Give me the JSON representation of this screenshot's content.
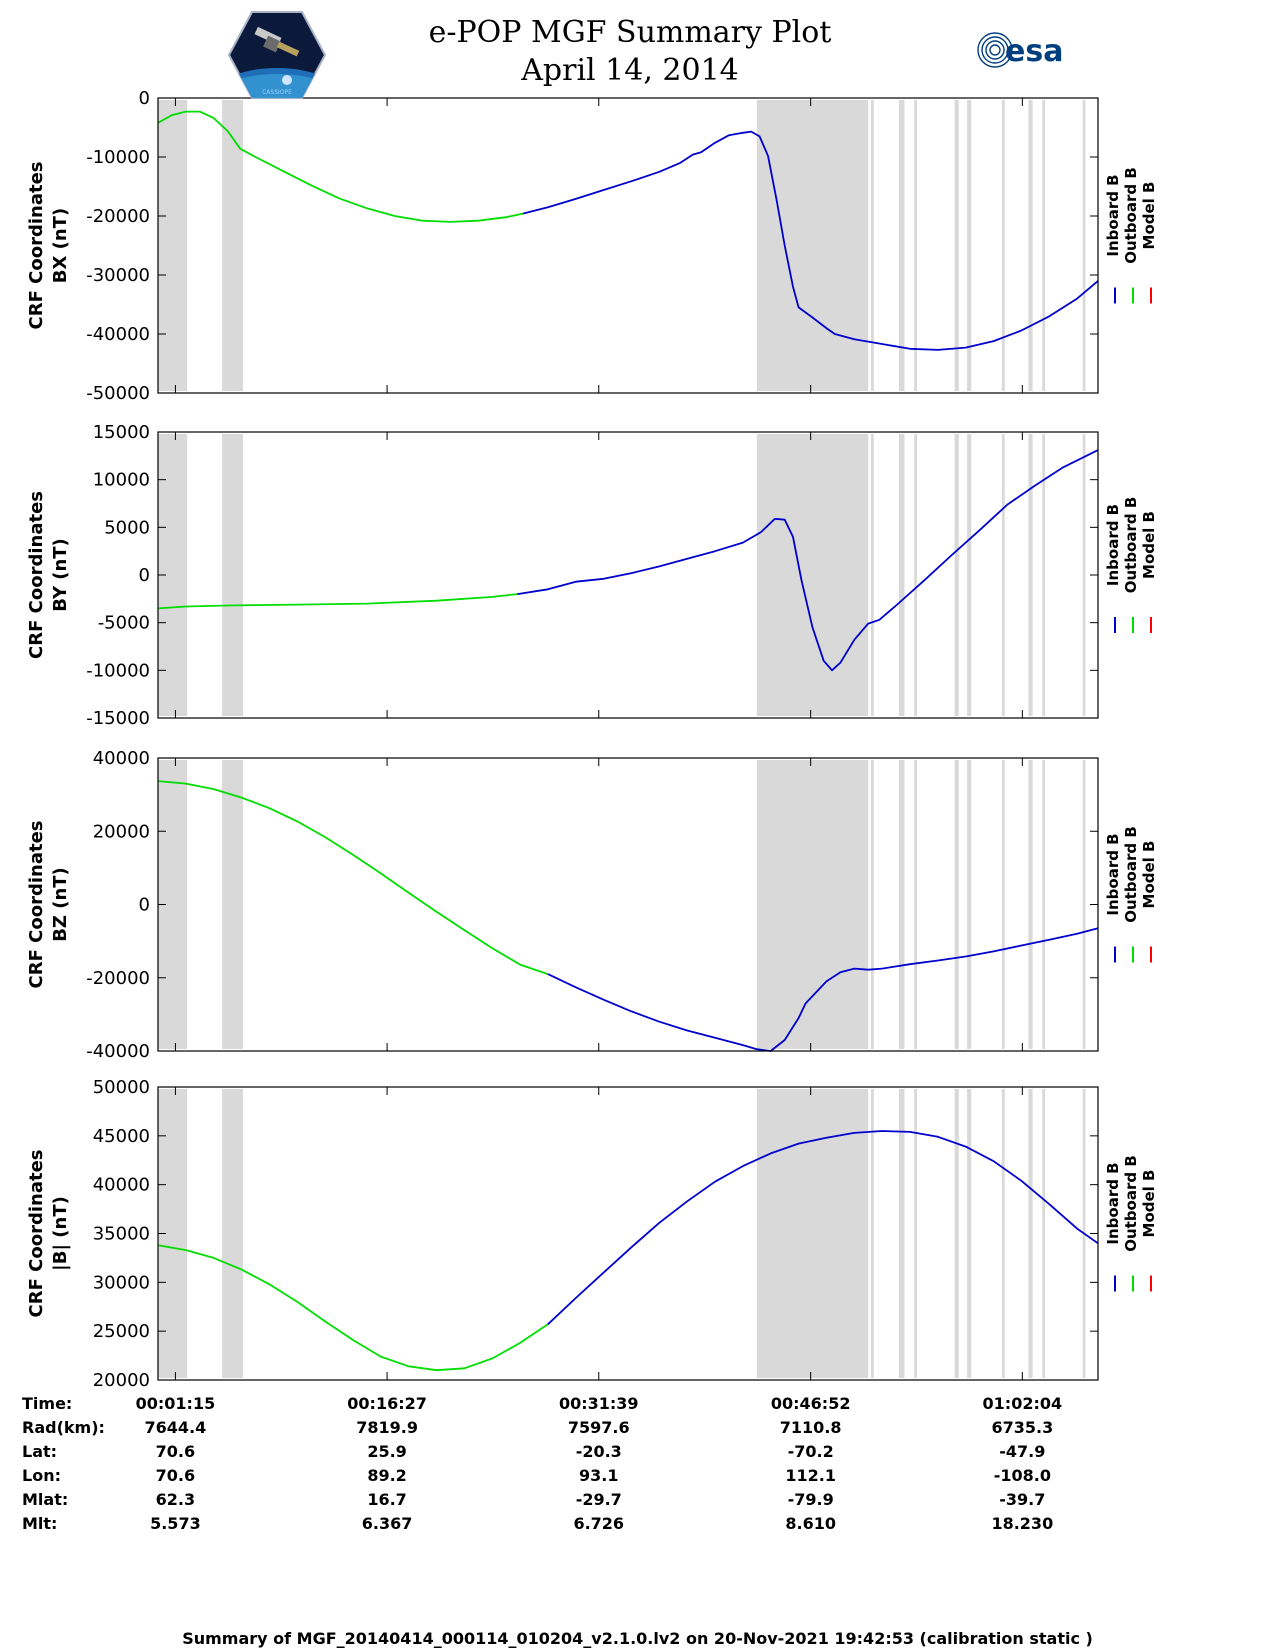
{
  "header": {
    "title_line1": "e-POP MGF Summary Plot",
    "title_line2": "April 14, 2014",
    "logo_left_text": "CASSIOPE",
    "logo_right_text": "esa"
  },
  "colors": {
    "inboard": "#0000cc",
    "outboard": "#00dd00",
    "model": "#ff0000",
    "gap": "#d9d9d9"
  },
  "chart_data": [
    {
      "type": "line",
      "panel": "BX",
      "ylabel_line1": "CRF Coordinates",
      "ylabel_line2": "BX (nT)",
      "ylim": [
        -50000,
        0
      ],
      "yticks": [
        0,
        -10000,
        -20000,
        -30000,
        -40000,
        -50000
      ],
      "legend": [
        "Inboard B",
        "Outboard B",
        "Model B"
      ],
      "series": [
        {
          "name": "Outboard B",
          "color_key": "outboard",
          "points": [
            [
              0,
              -4200
            ],
            [
              1,
              -2900
            ],
            [
              2,
              -2300
            ],
            [
              3,
              -2300
            ],
            [
              4,
              -3400
            ],
            [
              5,
              -5600
            ],
            [
              5.9,
              -8600
            ],
            [
              7,
              -10000
            ],
            [
              9,
              -12400
            ],
            [
              11,
              -14800
            ],
            [
              13,
              -17000
            ],
            [
              15,
              -18700
            ],
            [
              17,
              -20000
            ],
            [
              19,
              -20800
            ],
            [
              21,
              -21000
            ],
            [
              23,
              -20800
            ],
            [
              25,
              -20200
            ],
            [
              26.2,
              -19600
            ]
          ]
        },
        {
          "name": "Inboard B",
          "color_key": "inboard",
          "points": [
            [
              26.2,
              -19600
            ],
            [
              28,
              -18500
            ],
            [
              30,
              -17100
            ],
            [
              32,
              -15600
            ],
            [
              34,
              -14100
            ],
            [
              36,
              -12500
            ],
            [
              37.5,
              -11000
            ],
            [
              38.4,
              -9600
            ],
            [
              39,
              -9200
            ],
            [
              40,
              -7600
            ],
            [
              41,
              -6300
            ],
            [
              42,
              -5900
            ],
            [
              42.6,
              -5700
            ],
            [
              43.2,
              -6500
            ],
            [
              43.8,
              -9800
            ],
            [
              44.4,
              -17000
            ],
            [
              45,
              -25000
            ],
            [
              45.6,
              -32000
            ],
            [
              46,
              -35500
            ],
            [
              47,
              -37200
            ],
            [
              48,
              -39000
            ],
            [
              48.6,
              -40000
            ],
            [
              50,
              -40900
            ],
            [
              52,
              -41700
            ],
            [
              54,
              -42500
            ],
            [
              56,
              -42700
            ],
            [
              58,
              -42300
            ],
            [
              60,
              -41200
            ],
            [
              62,
              -39400
            ],
            [
              64,
              -37000
            ],
            [
              66,
              -34000
            ],
            [
              67.5,
              -31000
            ]
          ]
        }
      ]
    },
    {
      "type": "line",
      "panel": "BY",
      "ylabel_line1": "CRF Coordinates",
      "ylabel_line2": "BY (nT)",
      "ylim": [
        -15000,
        15000
      ],
      "yticks": [
        15000,
        10000,
        5000,
        0,
        -5000,
        -10000,
        -15000
      ],
      "legend": [
        "Inboard B",
        "Outboard B",
        "Model B"
      ],
      "series": [
        {
          "name": "Outboard B",
          "color_key": "outboard",
          "points": [
            [
              0,
              -3500
            ],
            [
              2,
              -3300
            ],
            [
              5,
              -3200
            ],
            [
              10,
              -3100
            ],
            [
              15,
              -3000
            ],
            [
              20,
              -2700
            ],
            [
              24,
              -2300
            ],
            [
              25.8,
              -2000
            ]
          ]
        },
        {
          "name": "Inboard B",
          "color_key": "inboard",
          "points": [
            [
              25.8,
              -2000
            ],
            [
              28,
              -1500
            ],
            [
              30,
              -700
            ],
            [
              32,
              -400
            ],
            [
              34,
              200
            ],
            [
              36,
              900
            ],
            [
              38,
              1700
            ],
            [
              40,
              2500
            ],
            [
              42,
              3400
            ],
            [
              43.3,
              4500
            ],
            [
              44.3,
              5900
            ],
            [
              45,
              5800
            ],
            [
              45.6,
              4000
            ],
            [
              46.2,
              -500
            ],
            [
              47,
              -5500
            ],
            [
              47.8,
              -9000
            ],
            [
              48.4,
              -10000
            ],
            [
              49,
              -9200
            ],
            [
              50,
              -6800
            ],
            [
              51,
              -5100
            ],
            [
              51.8,
              -4700
            ],
            [
              53,
              -3200
            ],
            [
              55,
              -600
            ],
            [
              57,
              2100
            ],
            [
              59,
              4700
            ],
            [
              61,
              7400
            ],
            [
              63,
              9400
            ],
            [
              65,
              11300
            ],
            [
              67.5,
              13100
            ]
          ]
        }
      ]
    },
    {
      "type": "line",
      "panel": "BZ",
      "ylabel_line1": "CRF Coordinates",
      "ylabel_line2": "BZ (nT)",
      "ylim": [
        -40000,
        40000
      ],
      "yticks": [
        40000,
        20000,
        0,
        -20000,
        -40000
      ],
      "legend": [
        "Inboard B",
        "Outboard B",
        "Model B"
      ],
      "series": [
        {
          "name": "Outboard B",
          "color_key": "outboard",
          "points": [
            [
              0,
              33700
            ],
            [
              2,
              33000
            ],
            [
              4,
              31500
            ],
            [
              6,
              29200
            ],
            [
              8,
              26300
            ],
            [
              10,
              22700
            ],
            [
              12,
              18400
            ],
            [
              14,
              13600
            ],
            [
              16,
              8500
            ],
            [
              18,
              3200
            ],
            [
              20,
              -2000
            ],
            [
              22,
              -7000
            ],
            [
              24,
              -11900
            ],
            [
              26,
              -16400
            ],
            [
              28,
              -19000
            ]
          ]
        },
        {
          "name": "Inboard B",
          "color_key": "inboard",
          "points": [
            [
              28,
              -19000
            ],
            [
              30,
              -22600
            ],
            [
              32,
              -26000
            ],
            [
              34,
              -29200
            ],
            [
              36,
              -32000
            ],
            [
              38,
              -34400
            ],
            [
              40,
              -36400
            ],
            [
              42,
              -38400
            ],
            [
              43,
              -39500
            ],
            [
              44,
              -40000
            ],
            [
              45,
              -37000
            ],
            [
              46,
              -31000
            ],
            [
              46.5,
              -27000
            ],
            [
              47,
              -25000
            ],
            [
              48,
              -21000
            ],
            [
              49,
              -18500
            ],
            [
              50,
              -17500
            ],
            [
              51,
              -17800
            ],
            [
              52,
              -17500
            ],
            [
              54,
              -16300
            ],
            [
              56,
              -15300
            ],
            [
              58,
              -14200
            ],
            [
              60,
              -12800
            ],
            [
              62,
              -11200
            ],
            [
              64,
              -9600
            ],
            [
              66,
              -8000
            ],
            [
              67.5,
              -6500
            ]
          ]
        }
      ]
    },
    {
      "type": "line",
      "panel": "B",
      "ylabel_line1": "CRF Coordinates",
      "ylabel_line2": "|B| (nT)",
      "ylim": [
        20000,
        50000
      ],
      "yticks": [
        50000,
        45000,
        40000,
        35000,
        30000,
        25000,
        20000
      ],
      "legend": [
        "Inboard B",
        "Outboard B",
        "Model B"
      ],
      "series": [
        {
          "name": "Outboard B",
          "color_key": "outboard",
          "points": [
            [
              0,
              33800
            ],
            [
              2,
              33300
            ],
            [
              4,
              32500
            ],
            [
              6,
              31300
            ],
            [
              8,
              29800
            ],
            [
              10,
              28000
            ],
            [
              12,
              26000
            ],
            [
              14,
              24100
            ],
            [
              16,
              22400
            ],
            [
              18,
              21400
            ],
            [
              20,
              21000
            ],
            [
              22,
              21200
            ],
            [
              24,
              22200
            ],
            [
              26,
              23800
            ],
            [
              28,
              25700
            ]
          ]
        },
        {
          "name": "Inboard B",
          "color_key": "inboard",
          "points": [
            [
              28,
              25700
            ],
            [
              30,
              28400
            ],
            [
              32,
              31000
            ],
            [
              34,
              33600
            ],
            [
              36,
              36100
            ],
            [
              38,
              38300
            ],
            [
              40,
              40300
            ],
            [
              42,
              41900
            ],
            [
              44,
              43200
            ],
            [
              46,
              44200
            ],
            [
              48,
              44800
            ],
            [
              50,
              45300
            ],
            [
              52,
              45500
            ],
            [
              54,
              45400
            ],
            [
              56,
              44900
            ],
            [
              58,
              43900
            ],
            [
              60,
              42400
            ],
            [
              62,
              40400
            ],
            [
              64,
              38000
            ],
            [
              66,
              35500
            ],
            [
              67.5,
              34000
            ]
          ]
        }
      ]
    }
  ],
  "x_axis": {
    "range_minutes": [
      0,
      67.5
    ],
    "tick_minutes": [
      1.25,
      16.45,
      31.65,
      46.867,
      62.067
    ]
  },
  "data_gaps": [
    [
      0,
      2.1
    ],
    [
      4.6,
      6.1
    ],
    [
      43,
      51
    ],
    [
      51.2,
      51.4
    ],
    [
      53.2,
      53.6
    ],
    [
      54.3,
      54.5
    ],
    [
      57.2,
      57.5
    ],
    [
      58.1,
      58.4
    ],
    [
      60.6,
      60.8
    ],
    [
      62.5,
      62.8
    ],
    [
      63.5,
      63.7
    ],
    [
      66.4,
      66.6
    ]
  ],
  "table": {
    "row_labels": [
      "Time:",
      "Rad(km):",
      "Lat:",
      "Lon:",
      "Mlat:",
      "Mlt:"
    ],
    "columns": [
      [
        "00:01:15",
        "7644.4",
        "70.6",
        "70.6",
        "62.3",
        "5.573"
      ],
      [
        "00:16:27",
        "7819.9",
        "25.9",
        "89.2",
        "16.7",
        "6.367"
      ],
      [
        "00:31:39",
        "7597.6",
        "-20.3",
        "93.1",
        "-29.7",
        "6.726"
      ],
      [
        "00:46:52",
        "7110.8",
        "-70.2",
        "112.1",
        "-79.9",
        "8.610"
      ],
      [
        "01:02:04",
        "6735.3",
        "-47.9",
        "-108.0",
        "-39.7",
        "18.230"
      ]
    ]
  },
  "footer": "Summary of MGF_20140414_000114_010204_v2.1.0.lv2 on 20-Nov-2021 19:42:53 (calibration static )"
}
